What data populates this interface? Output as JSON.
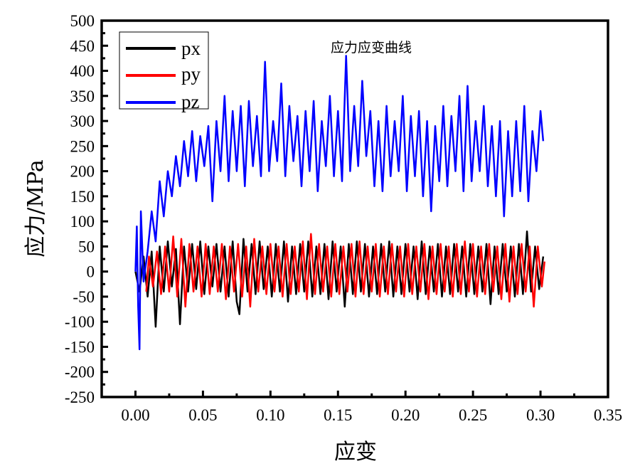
{
  "chart_data": {
    "type": "line",
    "title": "应力应变曲线",
    "xlabel": "应变",
    "ylabel": "应力/MPa",
    "xlim": [
      -0.025,
      0.35
    ],
    "ylim": [
      -250,
      500
    ],
    "xticks": [
      "0.00",
      "0.05",
      "0.10",
      "0.15",
      "0.20",
      "0.25",
      "0.30",
      "0.35"
    ],
    "yticks": [
      "500",
      "450",
      "400",
      "350",
      "300",
      "250",
      "200",
      "150",
      "100",
      "50",
      "0",
      "-50",
      "-100",
      "-150",
      "-200",
      "-250"
    ],
    "grid": false,
    "legend": "top-left",
    "series": [
      {
        "name": "px",
        "color": "#000000",
        "points": [
          [
            0.0,
            0
          ],
          [
            0.003,
            -40
          ],
          [
            0.006,
            30
          ],
          [
            0.009,
            -50
          ],
          [
            0.012,
            40
          ],
          [
            0.015,
            -110
          ],
          [
            0.018,
            50
          ],
          [
            0.021,
            -40
          ],
          [
            0.024,
            60
          ],
          [
            0.027,
            -30
          ],
          [
            0.03,
            45
          ],
          [
            0.033,
            -105
          ],
          [
            0.036,
            50
          ],
          [
            0.039,
            -40
          ],
          [
            0.042,
            55
          ],
          [
            0.045,
            -35
          ],
          [
            0.048,
            60
          ],
          [
            0.051,
            -45
          ],
          [
            0.054,
            50
          ],
          [
            0.057,
            -30
          ],
          [
            0.06,
            55
          ],
          [
            0.063,
            -40
          ],
          [
            0.066,
            50
          ],
          [
            0.069,
            -50
          ],
          [
            0.072,
            60
          ],
          [
            0.075,
            -60
          ],
          [
            0.077,
            -85
          ],
          [
            0.08,
            65
          ],
          [
            0.083,
            -40
          ],
          [
            0.086,
            55
          ],
          [
            0.089,
            -45
          ],
          [
            0.092,
            60
          ],
          [
            0.095,
            -35
          ],
          [
            0.098,
            50
          ],
          [
            0.101,
            -50
          ],
          [
            0.104,
            55
          ],
          [
            0.107,
            -40
          ],
          [
            0.11,
            60
          ],
          [
            0.113,
            -60
          ],
          [
            0.116,
            50
          ],
          [
            0.119,
            -45
          ],
          [
            0.122,
            55
          ],
          [
            0.125,
            -40
          ],
          [
            0.128,
            60
          ],
          [
            0.131,
            -50
          ],
          [
            0.134,
            50
          ],
          [
            0.137,
            -45
          ],
          [
            0.14,
            55
          ],
          [
            0.143,
            -55
          ],
          [
            0.146,
            60
          ],
          [
            0.149,
            -40
          ],
          [
            0.152,
            50
          ],
          [
            0.155,
            -70
          ],
          [
            0.158,
            55
          ],
          [
            0.161,
            -45
          ],
          [
            0.164,
            60
          ],
          [
            0.167,
            -40
          ],
          [
            0.17,
            55
          ],
          [
            0.173,
            -50
          ],
          [
            0.176,
            50
          ],
          [
            0.179,
            -45
          ],
          [
            0.182,
            55
          ],
          [
            0.185,
            -40
          ],
          [
            0.188,
            60
          ],
          [
            0.191,
            -50
          ],
          [
            0.194,
            50
          ],
          [
            0.197,
            -45
          ],
          [
            0.2,
            55
          ],
          [
            0.203,
            -40
          ],
          [
            0.206,
            50
          ],
          [
            0.209,
            -55
          ],
          [
            0.212,
            60
          ],
          [
            0.215,
            -45
          ],
          [
            0.218,
            50
          ],
          [
            0.221,
            -40
          ],
          [
            0.224,
            55
          ],
          [
            0.227,
            -50
          ],
          [
            0.23,
            50
          ],
          [
            0.233,
            -45
          ],
          [
            0.236,
            55
          ],
          [
            0.239,
            -40
          ],
          [
            0.242,
            50
          ],
          [
            0.245,
            -50
          ],
          [
            0.248,
            55
          ],
          [
            0.251,
            -45
          ],
          [
            0.254,
            50
          ],
          [
            0.257,
            -40
          ],
          [
            0.26,
            55
          ],
          [
            0.263,
            -65
          ],
          [
            0.266,
            50
          ],
          [
            0.269,
            -45
          ],
          [
            0.272,
            55
          ],
          [
            0.275,
            -40
          ],
          [
            0.278,
            50
          ],
          [
            0.281,
            -50
          ],
          [
            0.284,
            55
          ],
          [
            0.287,
            -45
          ],
          [
            0.29,
            80
          ],
          [
            0.293,
            -40
          ],
          [
            0.296,
            50
          ],
          [
            0.299,
            -35
          ],
          [
            0.302,
            30
          ]
        ]
      },
      {
        "name": "py",
        "color": "#ff0000",
        "points": [
          [
            0.008,
            -40
          ],
          [
            0.01,
            30
          ],
          [
            0.013,
            -30
          ],
          [
            0.016,
            40
          ],
          [
            0.019,
            -45
          ],
          [
            0.022,
            50
          ],
          [
            0.025,
            -40
          ],
          [
            0.028,
            70
          ],
          [
            0.031,
            -50
          ],
          [
            0.034,
            65
          ],
          [
            0.037,
            -70
          ],
          [
            0.04,
            55
          ],
          [
            0.043,
            -40
          ],
          [
            0.046,
            50
          ],
          [
            0.049,
            -50
          ],
          [
            0.052,
            55
          ],
          [
            0.055,
            -45
          ],
          [
            0.058,
            50
          ],
          [
            0.061,
            -40
          ],
          [
            0.064,
            55
          ],
          [
            0.067,
            -55
          ],
          [
            0.07,
            50
          ],
          [
            0.073,
            -40
          ],
          [
            0.076,
            55
          ],
          [
            0.079,
            -50
          ],
          [
            0.082,
            50
          ],
          [
            0.085,
            -70
          ],
          [
            0.088,
            65
          ],
          [
            0.091,
            -40
          ],
          [
            0.094,
            50
          ],
          [
            0.097,
            -45
          ],
          [
            0.1,
            55
          ],
          [
            0.103,
            -40
          ],
          [
            0.106,
            50
          ],
          [
            0.109,
            -50
          ],
          [
            0.112,
            55
          ],
          [
            0.115,
            -45
          ],
          [
            0.118,
            50
          ],
          [
            0.121,
            -40
          ],
          [
            0.124,
            60
          ],
          [
            0.127,
            -55
          ],
          [
            0.13,
            75
          ],
          [
            0.133,
            -45
          ],
          [
            0.136,
            55
          ],
          [
            0.139,
            -40
          ],
          [
            0.142,
            50
          ],
          [
            0.145,
            -50
          ],
          [
            0.148,
            55
          ],
          [
            0.151,
            -45
          ],
          [
            0.154,
            50
          ],
          [
            0.157,
            -40
          ],
          [
            0.16,
            55
          ],
          [
            0.163,
            -50
          ],
          [
            0.166,
            60
          ],
          [
            0.169,
            -45
          ],
          [
            0.172,
            50
          ],
          [
            0.175,
            -40
          ],
          [
            0.178,
            55
          ],
          [
            0.181,
            -50
          ],
          [
            0.184,
            50
          ],
          [
            0.187,
            -45
          ],
          [
            0.19,
            55
          ],
          [
            0.193,
            -40
          ],
          [
            0.196,
            50
          ],
          [
            0.199,
            -50
          ],
          [
            0.202,
            55
          ],
          [
            0.205,
            -45
          ],
          [
            0.208,
            50
          ],
          [
            0.211,
            -40
          ],
          [
            0.214,
            55
          ],
          [
            0.217,
            -55
          ],
          [
            0.22,
            50
          ],
          [
            0.223,
            -45
          ],
          [
            0.226,
            55
          ],
          [
            0.229,
            -40
          ],
          [
            0.232,
            50
          ],
          [
            0.235,
            -50
          ],
          [
            0.238,
            55
          ],
          [
            0.241,
            -45
          ],
          [
            0.244,
            60
          ],
          [
            0.247,
            -40
          ],
          [
            0.25,
            55
          ],
          [
            0.253,
            -50
          ],
          [
            0.256,
            50
          ],
          [
            0.259,
            -45
          ],
          [
            0.262,
            55
          ],
          [
            0.265,
            -40
          ],
          [
            0.268,
            50
          ],
          [
            0.271,
            -55
          ],
          [
            0.274,
            55
          ],
          [
            0.277,
            -60
          ],
          [
            0.28,
            50
          ],
          [
            0.283,
            -45
          ],
          [
            0.286,
            55
          ],
          [
            0.289,
            -40
          ],
          [
            0.292,
            50
          ],
          [
            0.295,
            -70
          ],
          [
            0.298,
            50
          ],
          [
            0.301,
            -30
          ],
          [
            0.303,
            20
          ]
        ]
      },
      {
        "name": "pz",
        "color": "#0000ff",
        "points": [
          [
            0.0,
            0
          ],
          [
            0.001,
            90
          ],
          [
            0.002,
            -70
          ],
          [
            0.003,
            -155
          ],
          [
            0.004,
            120
          ],
          [
            0.006,
            -20
          ],
          [
            0.009,
            40
          ],
          [
            0.012,
            120
          ],
          [
            0.015,
            60
          ],
          [
            0.018,
            180
          ],
          [
            0.021,
            110
          ],
          [
            0.024,
            200
          ],
          [
            0.027,
            150
          ],
          [
            0.03,
            230
          ],
          [
            0.033,
            170
          ],
          [
            0.036,
            260
          ],
          [
            0.039,
            190
          ],
          [
            0.042,
            280
          ],
          [
            0.045,
            180
          ],
          [
            0.048,
            270
          ],
          [
            0.051,
            210
          ],
          [
            0.054,
            290
          ],
          [
            0.057,
            140
          ],
          [
            0.06,
            300
          ],
          [
            0.063,
            200
          ],
          [
            0.066,
            350
          ],
          [
            0.069,
            180
          ],
          [
            0.072,
            320
          ],
          [
            0.075,
            200
          ],
          [
            0.078,
            330
          ],
          [
            0.081,
            170
          ],
          [
            0.084,
            340
          ],
          [
            0.087,
            210
          ],
          [
            0.09,
            310
          ],
          [
            0.093,
            190
          ],
          [
            0.096,
            418
          ],
          [
            0.099,
            200
          ],
          [
            0.102,
            300
          ],
          [
            0.105,
            220
          ],
          [
            0.108,
            375
          ],
          [
            0.111,
            190
          ],
          [
            0.114,
            330
          ],
          [
            0.117,
            220
          ],
          [
            0.12,
            310
          ],
          [
            0.123,
            170
          ],
          [
            0.126,
            320
          ],
          [
            0.129,
            200
          ],
          [
            0.132,
            340
          ],
          [
            0.135,
            160
          ],
          [
            0.138,
            300
          ],
          [
            0.141,
            210
          ],
          [
            0.144,
            350
          ],
          [
            0.147,
            190
          ],
          [
            0.15,
            320
          ],
          [
            0.153,
            180
          ],
          [
            0.156,
            430
          ],
          [
            0.159,
            200
          ],
          [
            0.162,
            330
          ],
          [
            0.165,
            210
          ],
          [
            0.168,
            380
          ],
          [
            0.171,
            230
          ],
          [
            0.174,
            320
          ],
          [
            0.177,
            170
          ],
          [
            0.18,
            300
          ],
          [
            0.183,
            160
          ],
          [
            0.186,
            330
          ],
          [
            0.189,
            190
          ],
          [
            0.192,
            300
          ],
          [
            0.195,
            200
          ],
          [
            0.198,
            350
          ],
          [
            0.201,
            160
          ],
          [
            0.204,
            310
          ],
          [
            0.207,
            190
          ],
          [
            0.21,
            320
          ],
          [
            0.213,
            150
          ],
          [
            0.216,
            300
          ],
          [
            0.219,
            120
          ],
          [
            0.222,
            290
          ],
          [
            0.225,
            180
          ],
          [
            0.228,
            330
          ],
          [
            0.231,
            170
          ],
          [
            0.234,
            310
          ],
          [
            0.237,
            200
          ],
          [
            0.24,
            350
          ],
          [
            0.243,
            160
          ],
          [
            0.246,
            370
          ],
          [
            0.249,
            180
          ],
          [
            0.252,
            300
          ],
          [
            0.255,
            200
          ],
          [
            0.258,
            330
          ],
          [
            0.261,
            170
          ],
          [
            0.264,
            290
          ],
          [
            0.267,
            150
          ],
          [
            0.27,
            300
          ],
          [
            0.273,
            110
          ],
          [
            0.276,
            280
          ],
          [
            0.279,
            150
          ],
          [
            0.282,
            300
          ],
          [
            0.285,
            160
          ],
          [
            0.288,
            330
          ],
          [
            0.291,
            140
          ],
          [
            0.294,
            280
          ],
          [
            0.297,
            200
          ],
          [
            0.3,
            320
          ],
          [
            0.302,
            260
          ]
        ]
      }
    ]
  }
}
